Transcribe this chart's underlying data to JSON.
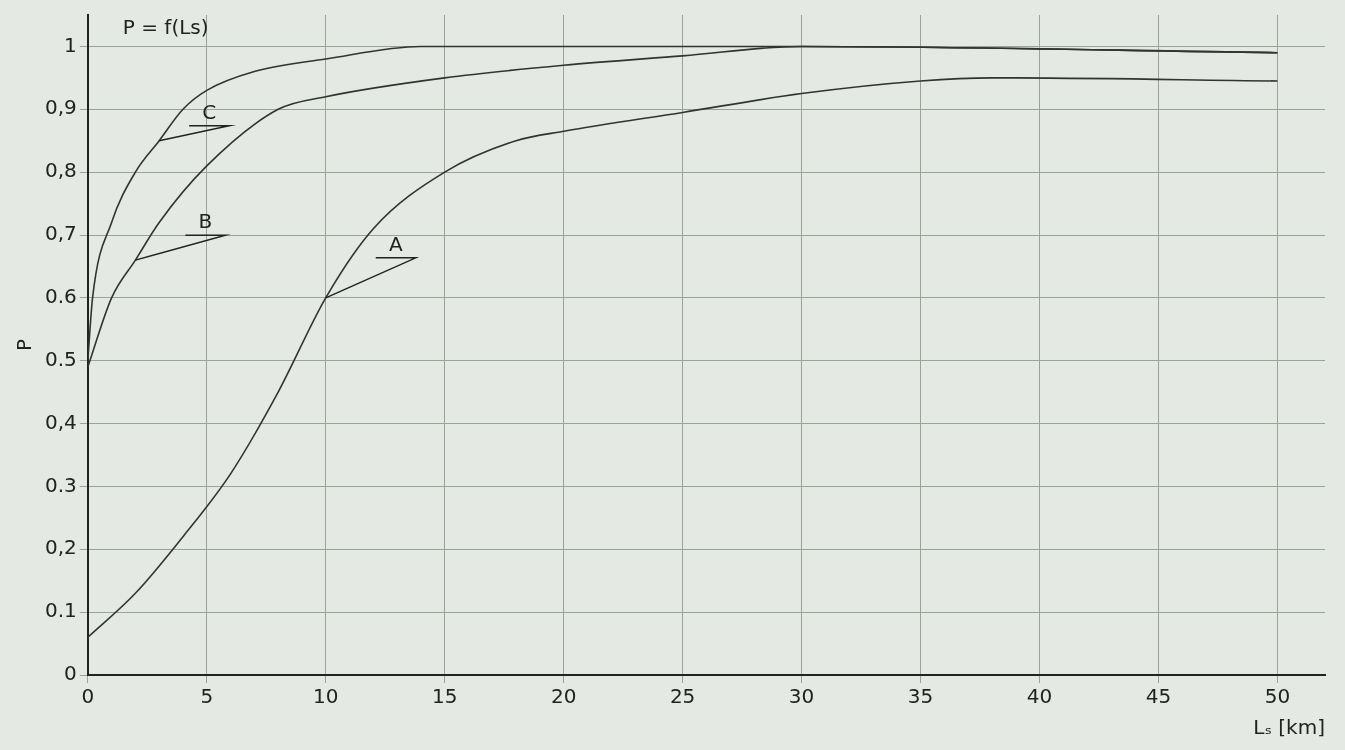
{
  "chart_data": {
    "type": "line",
    "xlabel": "Lₛ [km]",
    "ylabel": "P",
    "annotations": [
      "P = f(Ls)"
    ],
    "xlim": [
      0,
      52
    ],
    "xticks": [
      0,
      5,
      10,
      15,
      20,
      25,
      30,
      35,
      40,
      45,
      50
    ],
    "ylim": [
      0,
      1.05
    ],
    "yticks": [
      0,
      {
        "value": 0.1,
        "label": "0.1"
      },
      {
        "value": 0.2,
        "label": "0,2"
      },
      {
        "value": 0.3,
        "label": "0.3"
      },
      {
        "value": 0.4,
        "label": "0,4"
      },
      {
        "value": 0.5,
        "label": "0.5"
      },
      {
        "value": 0.6,
        "label": "0.6"
      },
      {
        "value": 0.7,
        "label": "0,7"
      },
      {
        "value": 0.8,
        "label": "0,8"
      },
      {
        "value": 0.9,
        "label": "0,9"
      },
      1
    ],
    "grid": true,
    "legend": false,
    "marker": "none",
    "line_style": "solid",
    "series": [
      {
        "name": "A",
        "color": "#333333",
        "x": [
          0,
          2,
          4,
          6,
          8,
          10,
          12,
          15,
          18,
          20,
          25,
          30,
          35,
          38,
          50
        ],
        "values": [
          0.06,
          0.13,
          0.22,
          0.32,
          0.45,
          0.6,
          0.71,
          0.8,
          0.85,
          0.865,
          0.895,
          0.925,
          0.945,
          0.95,
          0.945
        ]
      },
      {
        "name": "B",
        "color": "#333333",
        "x": [
          0,
          1,
          2,
          3,
          5,
          8,
          10,
          15,
          20,
          25,
          30,
          50
        ],
        "values": [
          0.49,
          0.6,
          0.66,
          0.72,
          0.81,
          0.9,
          0.92,
          0.95,
          0.97,
          0.985,
          1.0,
          0.99
        ]
      },
      {
        "name": "C",
        "color": "#333333",
        "x": [
          0,
          0.2,
          1,
          2,
          3,
          4,
          5,
          7,
          10,
          14,
          30,
          50
        ],
        "values": [
          0.5,
          0.6,
          0.72,
          0.8,
          0.85,
          0.9,
          0.93,
          0.96,
          0.98,
          1.0,
          1.0,
          0.99
        ]
      }
    ]
  }
}
